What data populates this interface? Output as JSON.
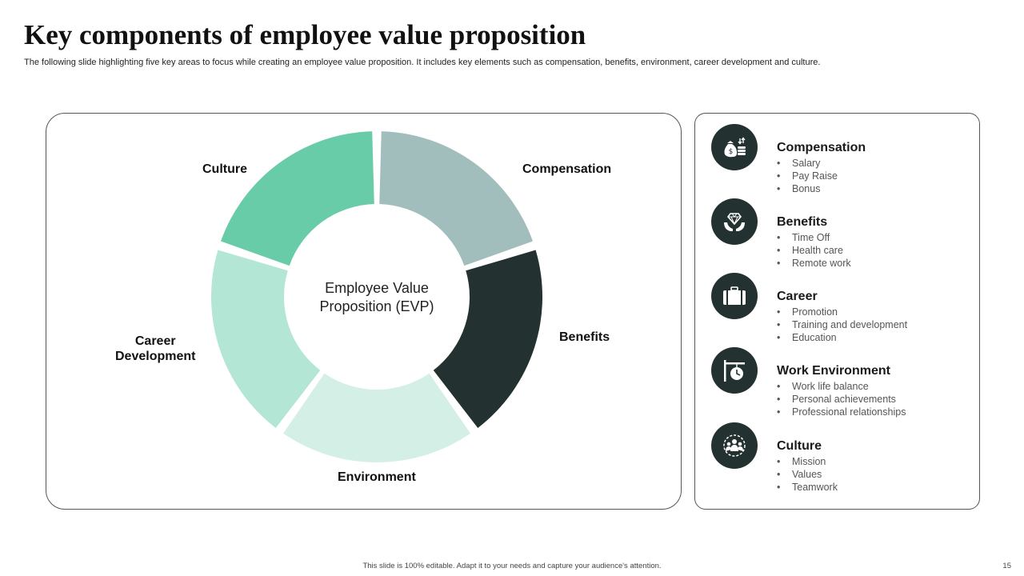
{
  "header": {
    "title": "Key components of employee value proposition",
    "subtitle": "The following slide highlighting five key areas to focus while creating an employee value proposition. It includes key elements such as compensation, benefits, environment, career development and culture."
  },
  "donut": {
    "center_line1": "Employee Value",
    "center_line2": "Proposition (EVP)",
    "segments": [
      {
        "label": "Compensation",
        "color": "#a1bdbc"
      },
      {
        "label": "Benefits",
        "color": "#233130"
      },
      {
        "label": "Environment",
        "color": "#d4efe5"
      },
      {
        "label": "Career Development",
        "label_line1": "Career",
        "label_line2": "Development",
        "color": "#b4e6d6"
      },
      {
        "label": "Culture",
        "color": "#69cca9"
      }
    ]
  },
  "components": [
    {
      "title": "Compensation",
      "icon": "money-bag-icon",
      "bullets": [
        "Salary",
        "Pay Raise",
        "Bonus"
      ]
    },
    {
      "title": "Benefits",
      "icon": "diamond-hands-icon",
      "bullets": [
        "Time Off",
        "Health care",
        "Remote work"
      ]
    },
    {
      "title": "Career",
      "icon": "briefcase-icon",
      "bullets": [
        "Promotion",
        "Training and development",
        "Education"
      ]
    },
    {
      "title": "Work Environment",
      "icon": "sign-clock-icon",
      "bullets": [
        "Work life balance",
        "Personal achievements",
        "Professional relationships"
      ]
    },
    {
      "title": "Culture",
      "icon": "team-icon",
      "bullets": [
        "Mission",
        "Values",
        "Teamwork"
      ]
    }
  ],
  "footer": {
    "note": "This slide is 100% editable. Adapt it to your needs and capture your audience's attention.",
    "page_number": "15"
  }
}
